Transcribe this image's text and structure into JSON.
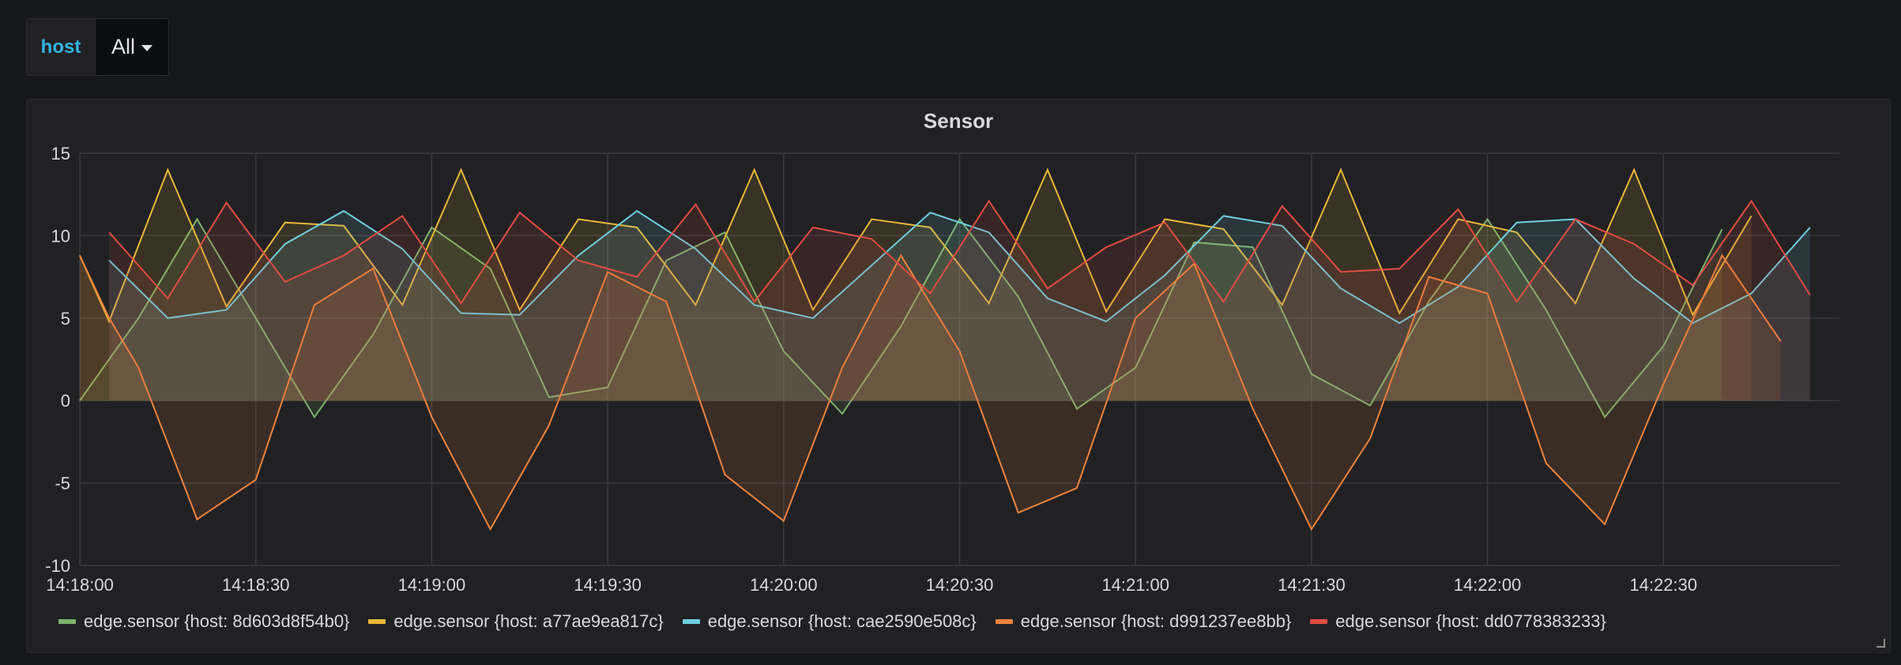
{
  "variable": {
    "name": "host",
    "value": "All"
  },
  "panel": {
    "title": "Sensor"
  },
  "chart_data": {
    "type": "area",
    "title": "Sensor",
    "xlabel": "",
    "ylabel": "",
    "ylim": [
      -10,
      15
    ],
    "yticks": [
      15,
      10,
      5,
      0,
      -5,
      -10
    ],
    "xticks": [
      "14:18:00",
      "14:18:30",
      "14:19:00",
      "14:19:30",
      "14:20:00",
      "14:20:30",
      "14:21:00",
      "14:21:30",
      "14:22:00",
      "14:22:30"
    ],
    "xtick_seconds": [
      0,
      30,
      60,
      90,
      120,
      150,
      180,
      210,
      240,
      270
    ],
    "grid": true,
    "legend": "bottom",
    "series": [
      {
        "name": "edge.sensor {host: 8d603d8f54b0}",
        "color": "#7eb26d",
        "x": [
          0,
          10,
          20,
          30,
          40,
          50,
          60,
          70,
          80,
          90,
          100,
          110,
          120,
          130,
          140,
          150,
          160,
          170,
          180,
          190,
          200,
          210,
          220,
          230,
          240,
          250,
          260,
          270,
          280
        ],
        "values": [
          0,
          5,
          11,
          5,
          -1,
          4,
          10.5,
          8,
          0.2,
          0.8,
          8.5,
          10.2,
          3,
          -0.8,
          4.5,
          11,
          6.3,
          -0.5,
          2,
          9.6,
          9.3,
          1.6,
          -0.3,
          6,
          11,
          5.5,
          -1,
          3.3,
          10.4
        ]
      },
      {
        "name": "edge.sensor {host: a77ae9ea817c}",
        "color": "#eab839",
        "x": [
          0,
          5,
          15,
          25,
          35,
          45,
          55,
          65,
          75,
          85,
          95,
          105,
          115,
          125,
          135,
          145,
          155,
          165,
          175,
          185,
          195,
          205,
          215,
          225,
          235,
          245,
          255,
          265,
          275,
          285
        ],
        "values": [
          8.8,
          4.8,
          14,
          5.7,
          10.8,
          10.6,
          5.8,
          14,
          5.5,
          11,
          10.5,
          5.8,
          14,
          5.5,
          11,
          10.5,
          5.9,
          14,
          5.4,
          11,
          10.4,
          5.8,
          14,
          5.3,
          11,
          10.2,
          5.9,
          14,
          5.2,
          11.2
        ]
      },
      {
        "name": "edge.sensor {host: cae2590e508c}",
        "color": "#6ed0e0",
        "x": [
          5,
          15,
          25,
          35,
          45,
          55,
          65,
          75,
          85,
          95,
          105,
          115,
          125,
          135,
          145,
          155,
          165,
          175,
          185,
          195,
          205,
          215,
          225,
          235,
          245,
          255,
          265,
          275,
          285,
          295
        ],
        "values": [
          8.5,
          5,
          5.5,
          9.5,
          11.5,
          9.2,
          5.3,
          5.2,
          8.8,
          11.5,
          9.2,
          5.8,
          5,
          8.2,
          11.4,
          10.2,
          6.2,
          4.8,
          7.6,
          11.2,
          10.6,
          6.8,
          4.7,
          6.9,
          10.8,
          11,
          7.4,
          4.7,
          6.5,
          10.5
        ]
      },
      {
        "name": "edge.sensor {host: d991237ee8bb}",
        "color": "#ef843c",
        "x": [
          0,
          5,
          10,
          20,
          30,
          40,
          50,
          60,
          70,
          80,
          90,
          100,
          110,
          120,
          130,
          140,
          150,
          160,
          170,
          180,
          190,
          200,
          210,
          220,
          230,
          240,
          250,
          260,
          270,
          280,
          290
        ],
        "values": [
          8.8,
          5,
          2,
          -7.2,
          -4.8,
          5.8,
          8,
          -1,
          -7.8,
          -1.5,
          7.8,
          6,
          -4.5,
          -7.3,
          2,
          8.8,
          3,
          -6.8,
          -5.3,
          5,
          8.3,
          -0.5,
          -7.8,
          -2.3,
          7.5,
          6.5,
          -3.8,
          -7.5,
          1,
          8.8,
          3.6
        ]
      },
      {
        "name": "edge.sensor {host: dd0778383233}",
        "color": "#e24d42",
        "x": [
          5,
          15,
          25,
          35,
          45,
          55,
          65,
          75,
          85,
          95,
          105,
          115,
          125,
          135,
          145,
          155,
          165,
          175,
          185,
          195,
          205,
          215,
          225,
          235,
          245,
          255,
          265,
          275,
          285,
          295
        ],
        "values": [
          10.2,
          6.2,
          12,
          7.2,
          8.8,
          11.2,
          5.9,
          11.4,
          8.5,
          7.5,
          11.9,
          6,
          10.5,
          9.8,
          6.5,
          12.1,
          6.8,
          9.3,
          10.8,
          6,
          11.8,
          7.8,
          8,
          11.6,
          6,
          11,
          9.5,
          7,
          12.1,
          6.4
        ]
      }
    ]
  }
}
